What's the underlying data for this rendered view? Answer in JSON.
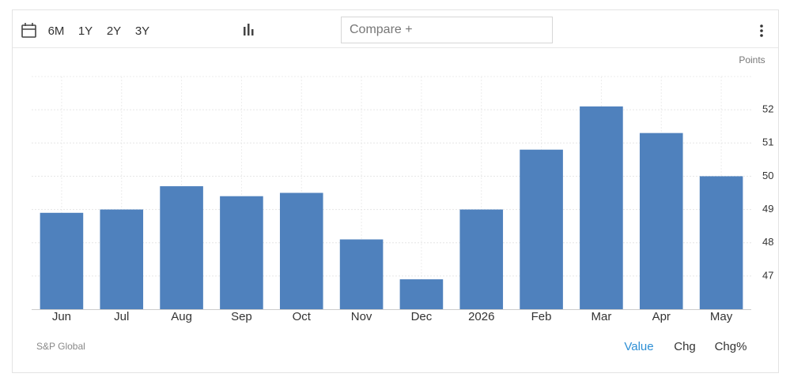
{
  "toolbar": {
    "ranges": [
      "6M",
      "1Y",
      "2Y",
      "3Y"
    ],
    "compare": "Compare +"
  },
  "chart_data": {
    "type": "bar",
    "y_axis_label": "Points",
    "categories": [
      "Jun",
      "Jul",
      "Aug",
      "Sep",
      "Oct",
      "Nov",
      "Dec",
      "2026",
      "Feb",
      "Mar",
      "Apr",
      "May"
    ],
    "values": [
      48.9,
      49.0,
      49.7,
      49.4,
      49.5,
      48.1,
      46.9,
      49.0,
      50.8,
      52.1,
      51.3,
      50.0
    ],
    "color": "#4f81bd",
    "ylim": [
      46,
      53
    ],
    "yticks": [
      47,
      48,
      49,
      50,
      51,
      52
    ],
    "grid": true,
    "y_axis_position": "right"
  },
  "footer": {
    "source": "S&P Global",
    "modes": [
      "Value",
      "Chg",
      "Chg%"
    ],
    "active_mode": "Value"
  }
}
